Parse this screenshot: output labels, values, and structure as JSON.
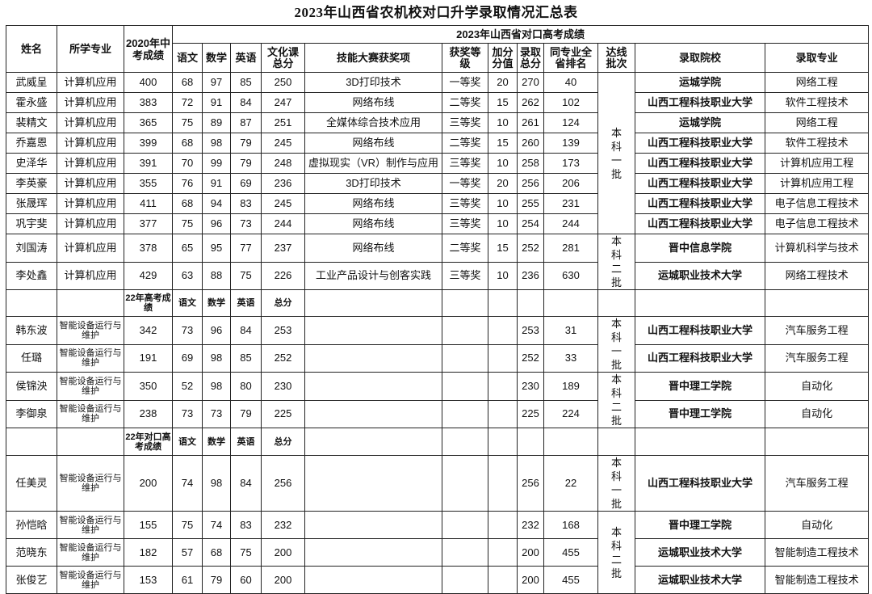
{
  "title": "2023年山西省农机校对口升学录取情况汇总表",
  "header": {
    "name": "姓名",
    "major": "所学专业",
    "zhongkao": "2020年中考成绩",
    "exam_group": "2023年山西省对口高考成绩",
    "chinese": "语文",
    "math": "数学",
    "english": "英语",
    "culture_total": "文化课总分",
    "skill_award": "技能大赛获奖项",
    "award_level": "获奖等级",
    "bonus": "加分分值",
    "admit_total": "录取总分",
    "rank": "同专业全省排名",
    "batch": "达线批次",
    "school": "录取院校",
    "admit_major": "录取专业"
  },
  "sections": [
    {
      "subheader": null,
      "rows": [
        [
          "武威呈",
          "计算机应用",
          "400",
          "68",
          "97",
          "85",
          "250",
          "3D打印技术",
          "一等奖",
          "20",
          "270",
          "40",
          "本科一批",
          "运城学院",
          "网络工程"
        ],
        [
          "霍永盛",
          "计算机应用",
          "383",
          "72",
          "91",
          "84",
          "247",
          "网络布线",
          "二等奖",
          "15",
          "262",
          "102",
          "本科一批",
          "山西工程科技职业大学",
          "软件工程技术"
        ],
        [
          "裴精文",
          "计算机应用",
          "365",
          "75",
          "89",
          "87",
          "251",
          "全媒体综合技术应用",
          "三等奖",
          "10",
          "261",
          "124",
          "本科一批",
          "运城学院",
          "网络工程"
        ],
        [
          "乔嘉恩",
          "计算机应用",
          "399",
          "68",
          "98",
          "79",
          "245",
          "网络布线",
          "二等奖",
          "15",
          "260",
          "139",
          "本科一批",
          "山西工程科技职业大学",
          "软件工程技术"
        ],
        [
          "史泽华",
          "计算机应用",
          "391",
          "70",
          "99",
          "79",
          "248",
          "虚拟现实（VR）制作与应用",
          "三等奖",
          "10",
          "258",
          "173",
          "本科一批",
          "山西工程科技职业大学",
          "计算机应用工程"
        ],
        [
          "李英豪",
          "计算机应用",
          "355",
          "76",
          "91",
          "69",
          "236",
          "3D打印技术",
          "一等奖",
          "20",
          "256",
          "206",
          "本科一批",
          "山西工程科技职业大学",
          "计算机应用工程"
        ],
        [
          "张晟珲",
          "计算机应用",
          "411",
          "68",
          "94",
          "83",
          "245",
          "网络布线",
          "三等奖",
          "10",
          "255",
          "231",
          "本科一批",
          "山西工程科技职业大学",
          "电子信息工程技术"
        ],
        [
          "巩宇斐",
          "计算机应用",
          "377",
          "75",
          "96",
          "73",
          "244",
          "网络布线",
          "三等奖",
          "10",
          "254",
          "244",
          "本科一批",
          "山西工程科技职业大学",
          "电子信息工程技术"
        ],
        [
          "刘国涛",
          "计算机应用",
          "378",
          "65",
          "95",
          "77",
          "237",
          "网络布线",
          "二等奖",
          "15",
          "252",
          "281",
          "本科二批",
          "晋中信息学院",
          "计算机科学与技术"
        ],
        [
          "李处鑫",
          "计算机应用",
          "429",
          "63",
          "88",
          "75",
          "226",
          "工业产品设计与创客实践",
          "三等奖",
          "10",
          "236",
          "630",
          "本科二批",
          "运城职业技术大学",
          "网络工程技术"
        ]
      ]
    },
    {
      "subheader": [
        "22年高考成绩",
        "语文",
        "数学",
        "英语",
        "总分"
      ],
      "rows": [
        [
          "韩东波",
          "智能设备运行与维护",
          "342",
          "73",
          "96",
          "84",
          "253",
          "",
          "",
          "",
          "253",
          "31",
          "本科一批",
          "山西工程科技职业大学",
          "汽车服务工程"
        ],
        [
          "任璐",
          "智能设备运行与维护",
          "191",
          "69",
          "98",
          "85",
          "252",
          "",
          "",
          "",
          "252",
          "33",
          "本科一批",
          "山西工程科技职业大学",
          "汽车服务工程"
        ],
        [
          "侯锦泱",
          "智能设备运行与维护",
          "350",
          "52",
          "98",
          "80",
          "230",
          "",
          "",
          "",
          "230",
          "189",
          "本科二批",
          "晋中理工学院",
          "自动化"
        ],
        [
          "李御泉",
          "智能设备运行与维护",
          "238",
          "73",
          "73",
          "79",
          "225",
          "",
          "",
          "",
          "225",
          "224",
          "本科二批",
          "晋中理工学院",
          "自动化"
        ]
      ]
    },
    {
      "subheader": [
        "22年对口高考成绩",
        "语文",
        "数学",
        "英语",
        "总分"
      ],
      "rows": [
        [
          "任美灵",
          "智能设备运行与维护",
          "200",
          "74",
          "98",
          "84",
          "256",
          "",
          "",
          "",
          "256",
          "22",
          "本科一批",
          "山西工程科技职业大学",
          "汽车服务工程"
        ],
        [
          "孙恺晗",
          "智能设备运行与维护",
          "155",
          "75",
          "74",
          "83",
          "232",
          "",
          "",
          "",
          "232",
          "168",
          "本科二批",
          "晋中理工学院",
          "自动化"
        ],
        [
          "范晓东",
          "智能设备运行与维护",
          "182",
          "57",
          "68",
          "75",
          "200",
          "",
          "",
          "",
          "200",
          "455",
          "本科二批",
          "运城职业技术大学",
          "智能制造工程技术"
        ],
        [
          "张俊艺",
          "智能设备运行与维护",
          "153",
          "61",
          "79",
          "60",
          "200",
          "",
          "",
          "",
          "200",
          "455",
          "本科二批",
          "运城职业技术大学",
          "智能制造工程技术"
        ]
      ]
    }
  ]
}
